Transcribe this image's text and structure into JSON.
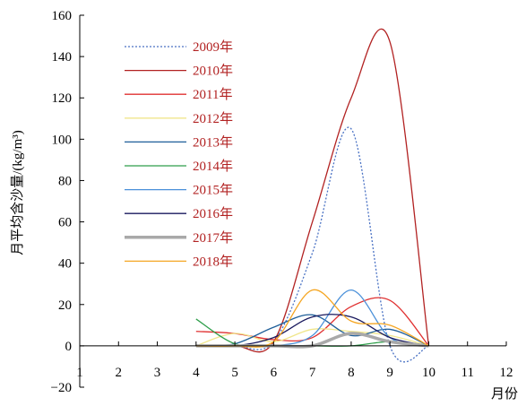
{
  "chart_data": {
    "type": "line",
    "xlabel": "月份",
    "ylabel": "月平均含沙量/(kg/m³)",
    "xlim": [
      1,
      12
    ],
    "ylim": [
      -20,
      160
    ],
    "x_ticks": [
      "1",
      "2",
      "3",
      "4",
      "5",
      "6",
      "7",
      "8",
      "9",
      "10",
      "11",
      "12"
    ],
    "y_ticks": [
      "−20",
      "0",
      "20",
      "40",
      "60",
      "80",
      "100",
      "120",
      "140",
      "160"
    ],
    "grid": false,
    "legend_position": "upper-left",
    "months": [
      4,
      5,
      6,
      7,
      8,
      9,
      10
    ],
    "series": [
      {
        "name": "2009年",
        "color": "#4a72c4",
        "style": "dotted",
        "values": [
          0,
          0,
          2,
          45,
          105,
          0,
          0
        ]
      },
      {
        "name": "2010年",
        "color": "#b22222",
        "style": "solid",
        "values": [
          0,
          0,
          2,
          60,
          120,
          147,
          0
        ]
      },
      {
        "name": "2011年",
        "color": "#e03030",
        "style": "solid",
        "values": [
          7,
          6,
          3,
          4,
          19,
          22,
          0
        ]
      },
      {
        "name": "2012年",
        "color": "#f0e68c",
        "style": "solid",
        "values": [
          0,
          6,
          2,
          8,
          7,
          5,
          0
        ]
      },
      {
        "name": "2013年",
        "color": "#1f5f99",
        "style": "solid",
        "values": [
          0,
          1,
          9,
          15,
          5,
          8,
          0
        ]
      },
      {
        "name": "2014年",
        "color": "#2e9e4a",
        "style": "solid",
        "values": [
          13,
          1,
          0,
          0,
          0,
          2,
          0
        ]
      },
      {
        "name": "2015年",
        "color": "#4a90d9",
        "style": "solid",
        "values": [
          0,
          0,
          0,
          5,
          27,
          4,
          0
        ]
      },
      {
        "name": "2016年",
        "color": "#1a1a5e",
        "style": "solid",
        "values": [
          0,
          0,
          4,
          14,
          14,
          4,
          0
        ]
      },
      {
        "name": "2017年",
        "color": "#a9a9a9",
        "style": "thick",
        "values": [
          0,
          0,
          0,
          0,
          6,
          2,
          0
        ]
      },
      {
        "name": "2018年",
        "color": "#f5a623",
        "style": "solid",
        "values": [
          0,
          0,
          2,
          27,
          12,
          10,
          0
        ]
      }
    ]
  }
}
